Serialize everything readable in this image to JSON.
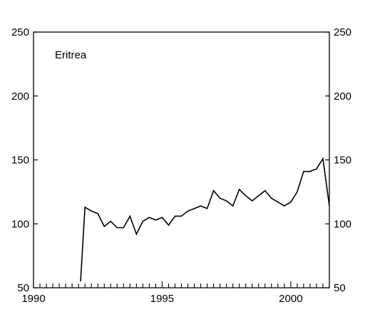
{
  "chart_data": {
    "type": "line",
    "title": "Eritrea",
    "xlabel": "",
    "ylabel": "",
    "xlim": [
      1990,
      2001.5
    ],
    "ylim": [
      50,
      250
    ],
    "x_ticks": [
      1990,
      1995,
      2000
    ],
    "x_tick_labels": [
      "1990",
      "1995",
      "2000"
    ],
    "y_ticks": [
      50,
      100,
      150,
      200,
      250
    ],
    "y_tick_labels": [
      "50",
      "100",
      "150",
      "200",
      "250"
    ],
    "y_axis_both_sides": true,
    "minor_x_ticks_per_year": 4,
    "grid": false,
    "legend": "none",
    "line_color": "#000000",
    "series": [
      {
        "x": [
          1991.83,
          1992.0,
          1992.25,
          1992.5,
          1992.75,
          1993.0,
          1993.25,
          1993.5,
          1993.75,
          1994.0,
          1994.25,
          1994.5,
          1994.75,
          1995.0,
          1995.25,
          1995.5,
          1995.75,
          1996.0,
          1996.25,
          1996.5,
          1996.75,
          1997.0,
          1997.25,
          1997.5,
          1997.75,
          1998.0,
          1998.25,
          1998.5,
          1998.75,
          1999.0,
          1999.25,
          1999.5,
          1999.75,
          2000.0,
          2000.25,
          2000.5,
          2000.75,
          2001.0,
          2001.25,
          2001.5
        ],
        "y": [
          55,
          113,
          110,
          108,
          98,
          102,
          97,
          97,
          106,
          92,
          102,
          105,
          103,
          105,
          99,
          106,
          106,
          110,
          112,
          114,
          112,
          126,
          120,
          118,
          114,
          127,
          122,
          118,
          122,
          126,
          120,
          117,
          114,
          117,
          125,
          141,
          141,
          143,
          151,
          114
        ]
      }
    ]
  }
}
